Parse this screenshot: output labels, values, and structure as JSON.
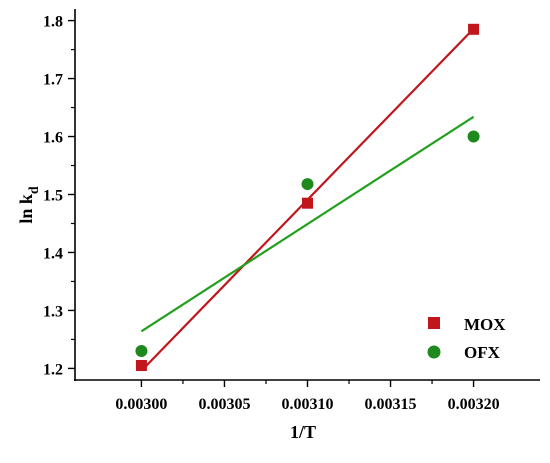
{
  "chart_data": {
    "type": "scatter",
    "title": "",
    "xlabel": "1/T",
    "ylabel_main": "ln k",
    "ylabel_sub": "d",
    "xlim": [
      0.00296,
      0.00324
    ],
    "ylim": [
      1.18,
      1.82
    ],
    "x_ticks": [
      0.003,
      0.00305,
      0.0031,
      0.00315,
      0.0032
    ],
    "x_tick_labels": [
      "0.00300",
      "0.00305",
      "0.00310",
      "0.00315",
      "0.00320"
    ],
    "y_ticks": [
      1.2,
      1.3,
      1.4,
      1.5,
      1.6,
      1.7,
      1.8
    ],
    "y_tick_labels": [
      "1.2",
      "1.3",
      "1.4",
      "1.5",
      "1.6",
      "1.7",
      "1.8"
    ],
    "grid": false,
    "legend_position": "bottom-right",
    "series": [
      {
        "name": "MOX",
        "marker": "square",
        "color": "#c0161c",
        "x": [
          0.003,
          0.0031,
          0.0032
        ],
        "y": [
          1.205,
          1.485,
          1.785
        ],
        "fit": {
          "x": [
            0.003,
            0.0032
          ],
          "y": [
            1.196,
            1.786
          ]
        }
      },
      {
        "name": "OFX",
        "marker": "circle",
        "color": "#1e8a1e",
        "line_color": "#22a01e",
        "x": [
          0.003,
          0.0031,
          0.0032
        ],
        "y": [
          1.23,
          1.518,
          1.6
        ],
        "fit": {
          "x": [
            0.003,
            0.0032
          ],
          "y": [
            1.264,
            1.634
          ]
        }
      }
    ]
  }
}
